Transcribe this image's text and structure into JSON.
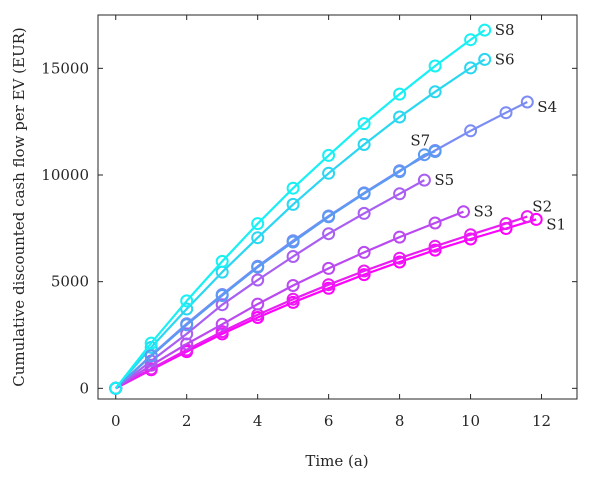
{
  "chart_data": {
    "type": "line",
    "xlabel": "Time (a)",
    "ylabel": "Cumulative discounted cash flow per EV (EUR)",
    "xlim": [
      -0.5,
      13
    ],
    "ylim": [
      -500,
      17500
    ],
    "xticks": [
      0,
      2,
      4,
      6,
      8,
      10,
      12
    ],
    "yticks": [
      0,
      5000,
      10000,
      15000
    ],
    "grid": false,
    "legend": "none",
    "marker": "open-circle",
    "series": [
      {
        "name": "S1",
        "color": "#ff00ff",
        "x": [
          0,
          1,
          2,
          3,
          4,
          5,
          6,
          7,
          8,
          9,
          10,
          11,
          11.85
        ],
        "y": [
          0,
          870,
          1720,
          2550,
          3320,
          4030,
          4690,
          5330,
          5920,
          6480,
          7000,
          7490,
          7920
        ]
      },
      {
        "name": "S2",
        "color": "#e91ff2",
        "x": [
          0,
          1,
          2,
          3,
          4,
          5,
          6,
          7,
          8,
          9,
          10,
          11,
          11.6
        ],
        "y": [
          0,
          910,
          1800,
          2660,
          3450,
          4180,
          4860,
          5500,
          6100,
          6660,
          7200,
          7720,
          8050
        ]
      },
      {
        "name": "S3",
        "color": "#bb49f0",
        "x": [
          0,
          1,
          2,
          3,
          4,
          5,
          6,
          7,
          8,
          9,
          9.8
        ],
        "y": [
          0,
          1080,
          2080,
          3000,
          3950,
          4820,
          5620,
          6370,
          7090,
          7750,
          8280
        ]
      },
      {
        "name": "S4",
        "color": "#7c8cf5",
        "x": [
          0,
          1,
          2,
          3,
          4,
          5,
          6,
          7,
          8,
          9,
          10,
          11,
          11.6
        ],
        "y": [
          0,
          1550,
          3030,
          4400,
          5720,
          6920,
          8080,
          9160,
          10200,
          11150,
          12070,
          12920,
          13420
        ]
      },
      {
        "name": "S5",
        "color": "#a95ff2",
        "x": [
          0,
          1,
          2,
          3,
          4,
          5,
          6,
          7,
          8,
          8.7
        ],
        "y": [
          0,
          1280,
          2550,
          3920,
          5080,
          6180,
          7250,
          8200,
          9120,
          9760
        ]
      },
      {
        "name": "S6",
        "color": "#2bd6f1",
        "x": [
          0,
          1,
          2,
          3,
          4,
          5,
          6,
          7,
          8,
          9,
          10,
          10.4
        ],
        "y": [
          0,
          1920,
          3720,
          5450,
          7060,
          8620,
          10080,
          11430,
          12720,
          13900,
          15020,
          15420
        ]
      },
      {
        "name": "S7",
        "color": "#5b9af2",
        "x": [
          0,
          1,
          2,
          3,
          4,
          5,
          6,
          7,
          8,
          8.7,
          9
        ],
        "y": [
          0,
          1520,
          2980,
          4350,
          5680,
          6860,
          8040,
          9130,
          10160,
          10950,
          11100
        ]
      },
      {
        "name": "S8",
        "color": "#18f0f3",
        "x": [
          0,
          1,
          2,
          3,
          4,
          5,
          6,
          7,
          8,
          9,
          10,
          10.4
        ],
        "y": [
          0,
          2120,
          4100,
          5950,
          7720,
          9380,
          10920,
          12410,
          13790,
          15110,
          16340,
          16790
        ]
      }
    ]
  },
  "series_labels": {
    "S1": {
      "text": "S1",
      "anchor_x": 11.85,
      "anchor_y": 7920,
      "dx": 10,
      "dy": 5
    },
    "S2": {
      "text": "S2",
      "anchor_x": 11.6,
      "anchor_y": 8050,
      "dx": 5,
      "dy": -10
    },
    "S3": {
      "text": "S3",
      "anchor_x": 9.8,
      "anchor_y": 8280,
      "dx": 10,
      "dy": 0
    },
    "S4": {
      "text": "S4",
      "anchor_x": 11.6,
      "anchor_y": 13420,
      "dx": 10,
      "dy": 5
    },
    "S5": {
      "text": "S5",
      "anchor_x": 8.7,
      "anchor_y": 9760,
      "dx": 10,
      "dy": 0
    },
    "S6": {
      "text": "S6",
      "anchor_x": 10.4,
      "anchor_y": 15420,
      "dx": 10,
      "dy": 0
    },
    "S7": {
      "text": "S7",
      "anchor_x": 8.7,
      "anchor_y": 10950,
      "dx": -14,
      "dy": -14
    },
    "S8": {
      "text": "S8",
      "anchor_x": 10.4,
      "anchor_y": 16790,
      "dx": 10,
      "dy": 0
    }
  }
}
